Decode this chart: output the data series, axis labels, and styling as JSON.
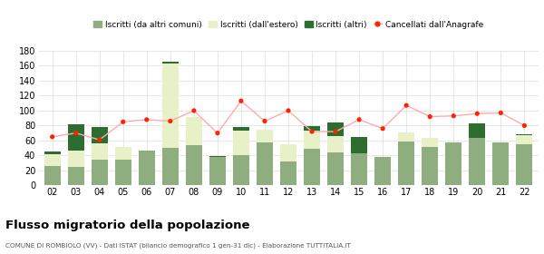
{
  "years": [
    "02",
    "03",
    "04",
    "05",
    "06",
    "07",
    "08",
    "09",
    "10",
    "11",
    "12",
    "13",
    "14",
    "15",
    "16",
    "17",
    "18",
    "19",
    "20",
    "21",
    "22"
  ],
  "iscritti_altri_comuni": [
    26,
    25,
    34,
    34,
    46,
    50,
    54,
    38,
    40,
    57,
    32,
    49,
    44,
    43,
    38,
    59,
    52,
    57,
    63,
    58,
    55
  ],
  "iscritti_estero": [
    16,
    22,
    22,
    17,
    0,
    113,
    38,
    0,
    33,
    17,
    23,
    24,
    22,
    0,
    0,
    12,
    12,
    0,
    0,
    0,
    12
  ],
  "iscritti_altri": [
    3,
    35,
    22,
    0,
    1,
    3,
    0,
    1,
    5,
    0,
    0,
    6,
    18,
    22,
    0,
    0,
    0,
    0,
    20,
    0,
    2
  ],
  "cancellati": [
    65,
    70,
    61,
    85,
    88,
    86,
    100,
    70,
    113,
    86,
    100,
    72,
    72,
    88,
    76,
    107,
    92,
    93,
    96,
    97,
    80
  ],
  "color_altri_comuni": "#8fae7f",
  "color_estero": "#e8f0c8",
  "color_altri": "#2d6e30",
  "color_cancellati": "#ff2200",
  "color_cancellati_line": "#ffaaaa",
  "title": "Flusso migratorio della popolazione",
  "subtitle": "COMUNE DI ROMBIOLO (VV) - Dati ISTAT (bilancio demografico 1 gen-31 dic) - Elaborazione TUTTITALIA.IT",
  "legend_labels": [
    "Iscritti (da altri comuni)",
    "Iscritti (dall'estero)",
    "Iscritti (altri)",
    "Cancellati dall'Anagrafe"
  ],
  "ylim": [
    0,
    180
  ],
  "yticks": [
    0,
    20,
    40,
    60,
    80,
    100,
    120,
    140,
    160,
    180
  ],
  "bg_color": "#ffffff",
  "grid_color": "#dddddd"
}
